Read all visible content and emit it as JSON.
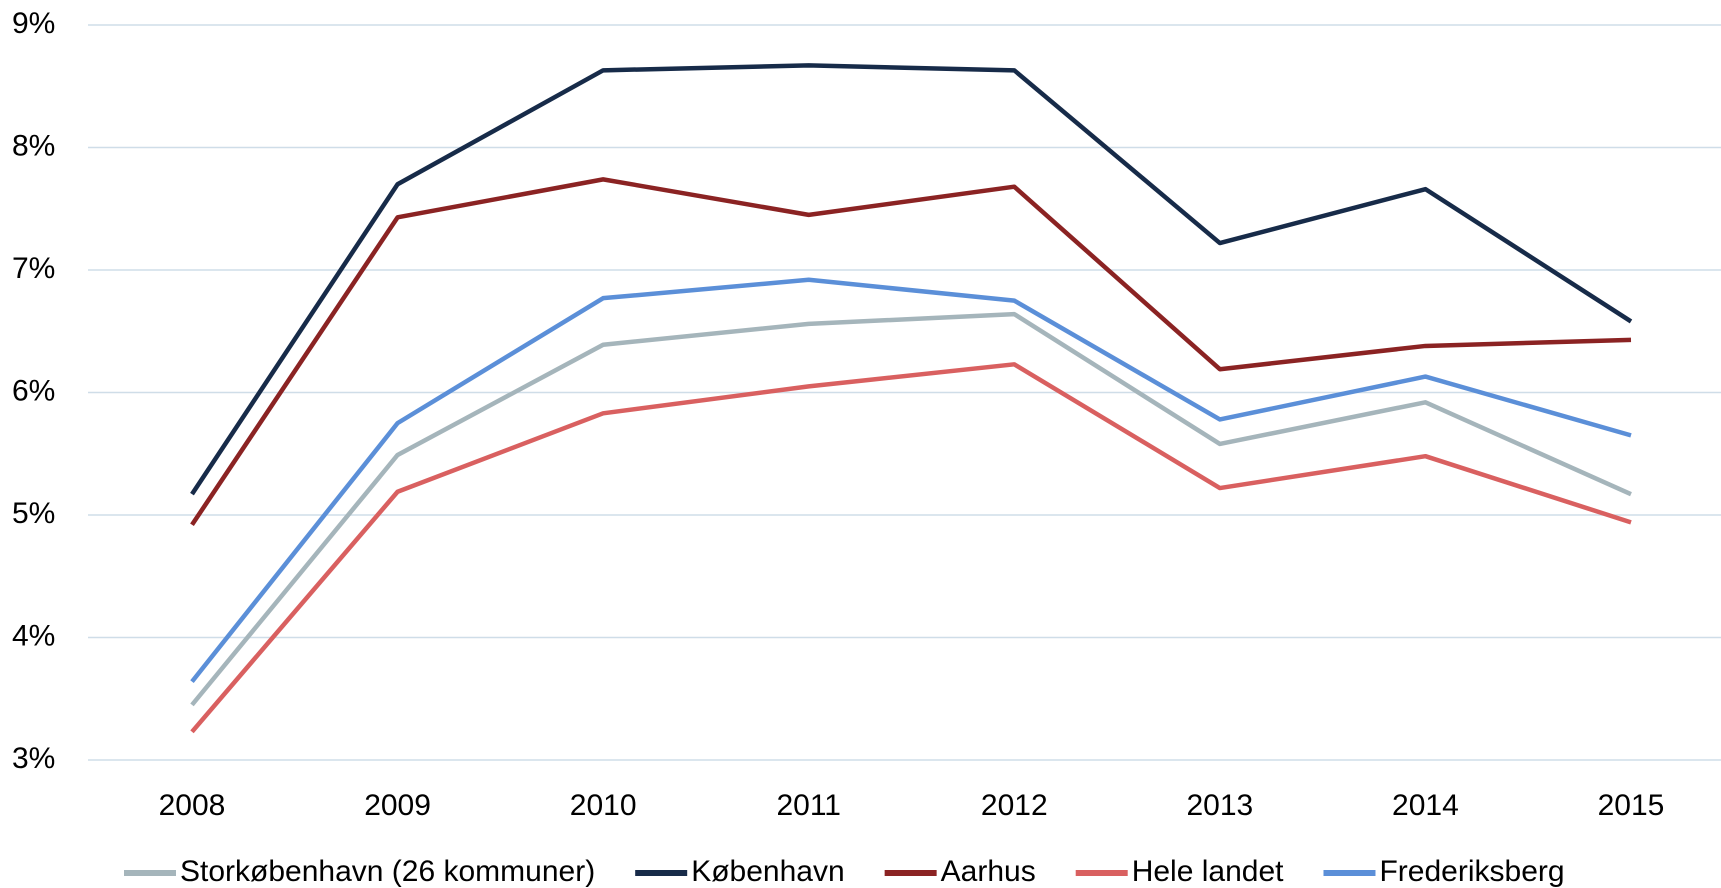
{
  "chart_data": {
    "type": "line",
    "categories": [
      "2008",
      "2009",
      "2010",
      "2011",
      "2012",
      "2013",
      "2014",
      "2015"
    ],
    "series": [
      {
        "name": "Storkøbenhavn (26 kommuner)",
        "color": "#a5b5bb",
        "values": [
          3.45,
          5.49,
          6.39,
          6.56,
          6.64,
          5.58,
          5.92,
          5.17
        ]
      },
      {
        "name": "København",
        "color": "#172b49",
        "values": [
          5.17,
          7.7,
          8.63,
          8.67,
          8.63,
          7.22,
          7.66,
          6.58
        ]
      },
      {
        "name": "Aarhus",
        "color": "#8b2323",
        "values": [
          4.92,
          7.43,
          7.74,
          7.45,
          7.68,
          6.19,
          6.38,
          6.43
        ]
      },
      {
        "name": "Hele landet",
        "color": "#d96060",
        "values": [
          3.23,
          5.19,
          5.83,
          6.05,
          6.23,
          5.22,
          5.48,
          4.94
        ]
      },
      {
        "name": "Frederiksberg",
        "color": "#5b8fd8",
        "values": [
          3.64,
          5.75,
          6.77,
          6.92,
          6.75,
          5.78,
          6.13,
          5.65
        ]
      }
    ],
    "ylim": [
      3,
      9
    ],
    "yticks": [
      {
        "value": 3,
        "label": "3%"
      },
      {
        "value": 4,
        "label": "4%"
      },
      {
        "value": 5,
        "label": "5%"
      },
      {
        "value": 6,
        "label": "6%"
      },
      {
        "value": 7,
        "label": "7%"
      },
      {
        "value": 8,
        "label": "8%"
      },
      {
        "value": 9,
        "label": "9%"
      }
    ],
    "grid": true,
    "legend": "bottom"
  }
}
